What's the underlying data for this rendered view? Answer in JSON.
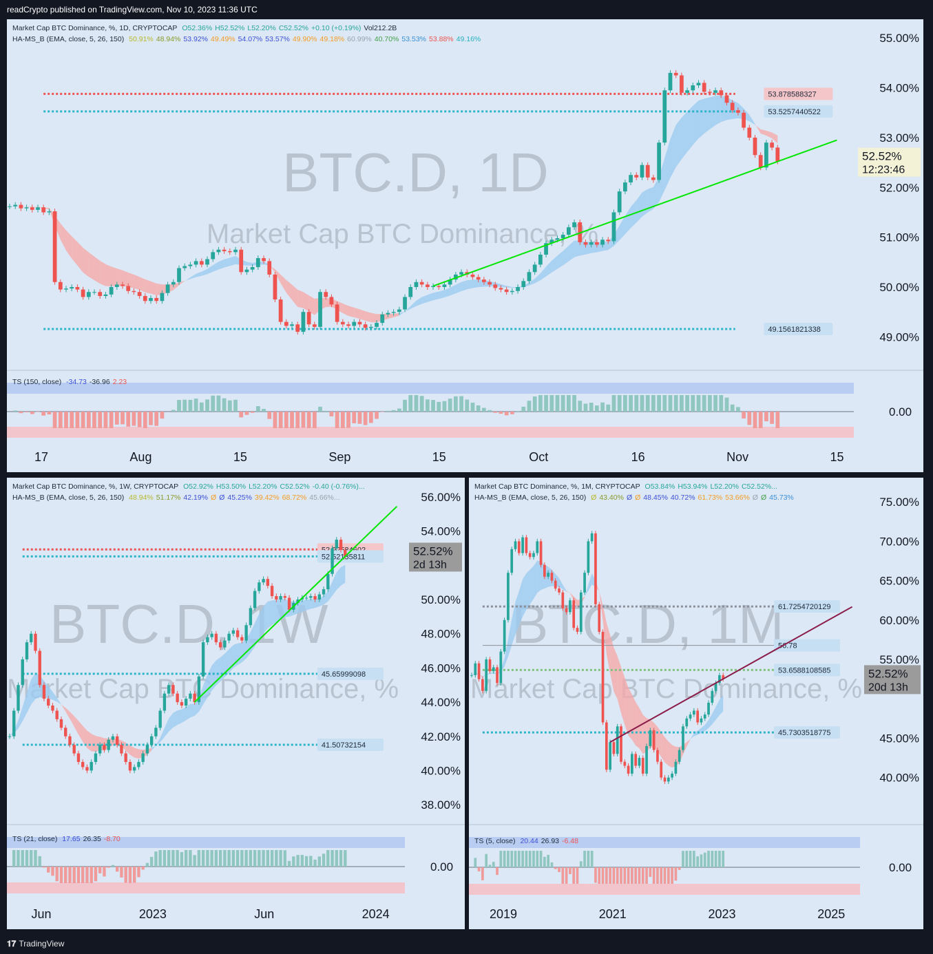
{
  "header": {
    "text": "readCrypto published on TradingView.com, Nov 10, 2023 11:36 UTC"
  },
  "footer": {
    "brand": "TradingView",
    "logo_icon": "tradingview-logo-icon"
  },
  "colors": {
    "bull": "#26a69a",
    "bear": "#ef5350",
    "ema_fast": "#f5a9a9",
    "ema_slow": "#9ccaf0",
    "trend": "#00e600",
    "ms_line": "#5b5bf0",
    "olive": "#b8b84a",
    "orange": "#f59b23"
  },
  "chart_data": [
    {
      "id": "daily",
      "type": "line",
      "legend_line1": {
        "title": "Market Cap BTC Dominance, %, 1D, CRYPTOCAP",
        "values": [
          "O52.36%",
          "H52.52%",
          "L52.20%",
          "C52.52%",
          "+0.10 (+0.19%)",
          "Vol212.2B"
        ]
      },
      "legend_line2": {
        "title": "HA-MS_B (EMA, close, 5, 26, 150)",
        "values": [
          "50.91%",
          "48.94%",
          "53.92%",
          "49.49%",
          "54.07%",
          "53.57%",
          "49.90%",
          "49.18%",
          "60.99%",
          "40.70%",
          "53.53%",
          "53.88%",
          "49.16%"
        ]
      },
      "watermark": [
        "BTC.D, 1D",
        "Market Cap BTC Dominance, %"
      ],
      "y_ticks": [
        "55.00%",
        "54.00%",
        "53.00%",
        "52.00%",
        "51.00%",
        "50.00%",
        "49.00%"
      ],
      "ylim": [
        48.3,
        55.1
      ],
      "x_ticks": [
        "17",
        "Aug",
        "15",
        "Sep",
        "15",
        "Oct",
        "16",
        "Nov",
        "15"
      ],
      "price_label": "52.52%",
      "countdown": "12:23:46",
      "level_labels": [
        "53.878588327",
        "53.5257440522",
        "49.1561821338"
      ],
      "levels": [
        53.878588327,
        53.5257440522,
        49.1561821338
      ],
      "close_series": [
        51.62,
        51.65,
        51.58,
        51.6,
        51.55,
        51.6,
        51.5,
        51.52,
        50.1,
        49.95,
        49.97,
        50.0,
        49.95,
        49.8,
        49.9,
        49.9,
        49.82,
        49.85,
        50.0,
        50.05,
        50.02,
        49.92,
        49.9,
        49.82,
        49.72,
        49.78,
        49.72,
        49.88,
        50.05,
        50.1,
        50.38,
        50.42,
        50.45,
        50.52,
        50.45,
        50.56,
        50.7,
        50.75,
        50.72,
        50.7,
        50.75,
        50.3,
        50.35,
        50.4,
        50.58,
        50.52,
        50.25,
        49.75,
        49.3,
        49.22,
        49.25,
        49.1,
        49.5,
        49.25,
        49.2,
        49.9,
        49.8,
        49.65,
        49.3,
        49.25,
        49.22,
        49.3,
        49.25,
        49.18,
        49.2,
        49.28,
        49.45,
        49.48,
        49.5,
        49.55,
        49.8,
        50.0,
        50.1,
        50.05,
        50.0,
        50.02,
        50.0,
        50.05,
        50.15,
        50.25,
        50.3,
        50.25,
        50.2,
        50.15,
        50.1,
        50.05,
        49.98,
        49.95,
        49.9,
        49.92,
        50.0,
        50.12,
        50.3,
        50.45,
        50.65,
        50.88,
        50.95,
        50.98,
        51.05,
        51.2,
        51.3,
        50.9,
        50.85,
        50.9,
        50.85,
        50.95,
        50.92,
        51.5,
        51.92,
        52.1,
        52.25,
        52.2,
        52.45,
        52.2,
        52.15,
        52.9,
        53.95,
        54.3,
        54.25,
        53.9,
        53.95,
        54.05,
        54.1,
        53.92,
        53.9,
        53.95,
        53.85,
        53.7,
        53.55,
        53.5,
        53.2,
        53.0,
        52.65,
        52.4,
        52.9,
        52.8,
        52.52
      ]
    },
    {
      "id": "weekly",
      "type": "line",
      "legend_line1": {
        "title": "Market Cap BTC Dominance, %, 1W, CRYPTOCAP",
        "values": [
          "O52.92%",
          "H53.50%",
          "L52.20%",
          "C52.52%",
          "-0.40 (-0.76%)..."
        ]
      },
      "legend_line2": {
        "title": "HA-MS_B (EMA, close, 5, 26, 150)",
        "values": [
          "48.94%",
          "51.17%",
          "42.19%",
          "Ø",
          "Ø",
          "45.25%",
          "39.42%",
          "68.72%",
          "45.66%..."
        ]
      },
      "watermark": [
        "BTC.D, 1W",
        "Market Cap BTC Dominance, %"
      ],
      "y_ticks": [
        "56.00%",
        "54.00%",
        "50.00%",
        "48.00%",
        "46.00%",
        "44.00%",
        "42.00%",
        "40.00%",
        "38.00%"
      ],
      "ylim": [
        37.2,
        56.4
      ],
      "x_ticks": [
        "Jun",
        "2023",
        "Jun",
        "2024"
      ],
      "price_label": "52.52%",
      "countdown": "2d 13h",
      "level_labels": [
        "52.92584602",
        "52.52135811",
        "45.65999098",
        "41.50732154"
      ],
      "levels": [
        52.92584602,
        52.52135811,
        45.65999098,
        41.50732154
      ],
      "close_series": [
        42.0,
        43.5,
        45.0,
        46.5,
        47.5,
        48.0,
        47.0,
        45.0,
        44.2,
        43.8,
        43.5,
        43.0,
        42.5,
        42.0,
        41.5,
        41.0,
        40.5,
        40.2,
        40.0,
        40.5,
        41.0,
        41.5,
        41.2,
        41.8,
        42.0,
        41.5,
        41.0,
        40.5,
        40.0,
        40.2,
        40.5,
        41.0,
        41.5,
        42.0,
        42.5,
        43.5,
        44.5,
        45.0,
        44.5,
        44.0,
        43.8,
        44.2,
        44.5,
        44.0,
        45.5,
        47.5,
        47.8,
        48.0,
        47.5,
        47.2,
        47.6,
        48.0,
        48.2,
        47.8,
        47.6,
        48.5,
        49.5,
        50.5,
        51.0,
        51.2,
        50.8,
        50.2,
        50.0,
        50.2,
        50.1,
        49.4,
        49.8,
        50.0,
        50.1,
        50.1,
        50.2,
        50.0,
        50.3,
        50.6,
        51.5,
        53.0,
        53.5,
        52.9,
        52.52
      ]
    },
    {
      "id": "monthly",
      "type": "line",
      "legend_line1": {
        "title": "Market Cap BTC Dominance, %, 1M, CRYPTOCAP",
        "values": [
          "O53.84%",
          "H53.94%",
          "L52.20%",
          "C52.52%..."
        ]
      },
      "legend_line2": {
        "title": "HA-MS_B (EMA, close, 5, 26, 150)",
        "values": [
          "Ø",
          "43.40%",
          "Ø",
          "Ø",
          "48.45%",
          "40.72%",
          "61.73%",
          "53.66%",
          "Ø",
          "Ø",
          "45.73%"
        ]
      },
      "watermark": [
        "BTC.D, 1M",
        "Market Cap BTC Dominance, %"
      ],
      "y_ticks": [
        "75.00%",
        "70.00%",
        "65.00%",
        "60.00%",
        "55.00%",
        "45.00%",
        "40.00%"
      ],
      "ylim": [
        37.0,
        76.5
      ],
      "x_ticks": [
        "2019",
        "2021",
        "2023",
        "2025"
      ],
      "price_label": "52.52%",
      "countdown": "20d 13h",
      "level_labels": [
        "61.7254720129",
        "56.78",
        "53.6588108585",
        "45.7303518775"
      ],
      "levels": [
        61.7254720129,
        56.78,
        53.6588108585,
        45.7303518775
      ],
      "close_series": [
        53.0,
        54.5,
        52.5,
        51.0,
        55.0,
        53.5,
        54.0,
        52.0,
        56.0,
        60.0,
        66.0,
        69.0,
        70.0,
        68.5,
        70.5,
        68.5,
        68.0,
        68.5,
        70.0,
        67.0,
        65.5,
        66.0,
        65.0,
        64.0,
        63.5,
        61.5,
        61.0,
        62.5,
        59.0,
        58.5,
        63.5,
        66.0,
        70.0,
        71.0,
        62.0,
        58.5,
        47.0,
        41.0,
        44.5,
        43.0,
        46.5,
        42.0,
        41.5,
        40.5,
        43.0,
        41.5,
        42.5,
        40.5,
        44.0,
        46.0,
        43.5,
        42.0,
        40.0,
        39.5,
        40.0,
        40.5,
        42.0,
        43.5,
        46.5,
        47.5,
        48.0,
        48.5,
        47.0,
        47.5,
        48.0,
        49.5,
        51.0,
        52.0,
        53.0,
        52.52
      ]
    }
  ],
  "oscillators": [
    {
      "title": "TS (150, close)",
      "values": [
        "-34.73",
        "-36.96",
        "2.23"
      ],
      "zero_label": "0.00"
    },
    {
      "title": "TS (21, close)",
      "values": [
        "17.65",
        "26.35",
        "-8.70"
      ],
      "zero_label": "0.00"
    },
    {
      "title": "TS (5, close)",
      "values": [
        "20.44",
        "26.93",
        "-6.48"
      ],
      "zero_label": "0.00"
    }
  ]
}
